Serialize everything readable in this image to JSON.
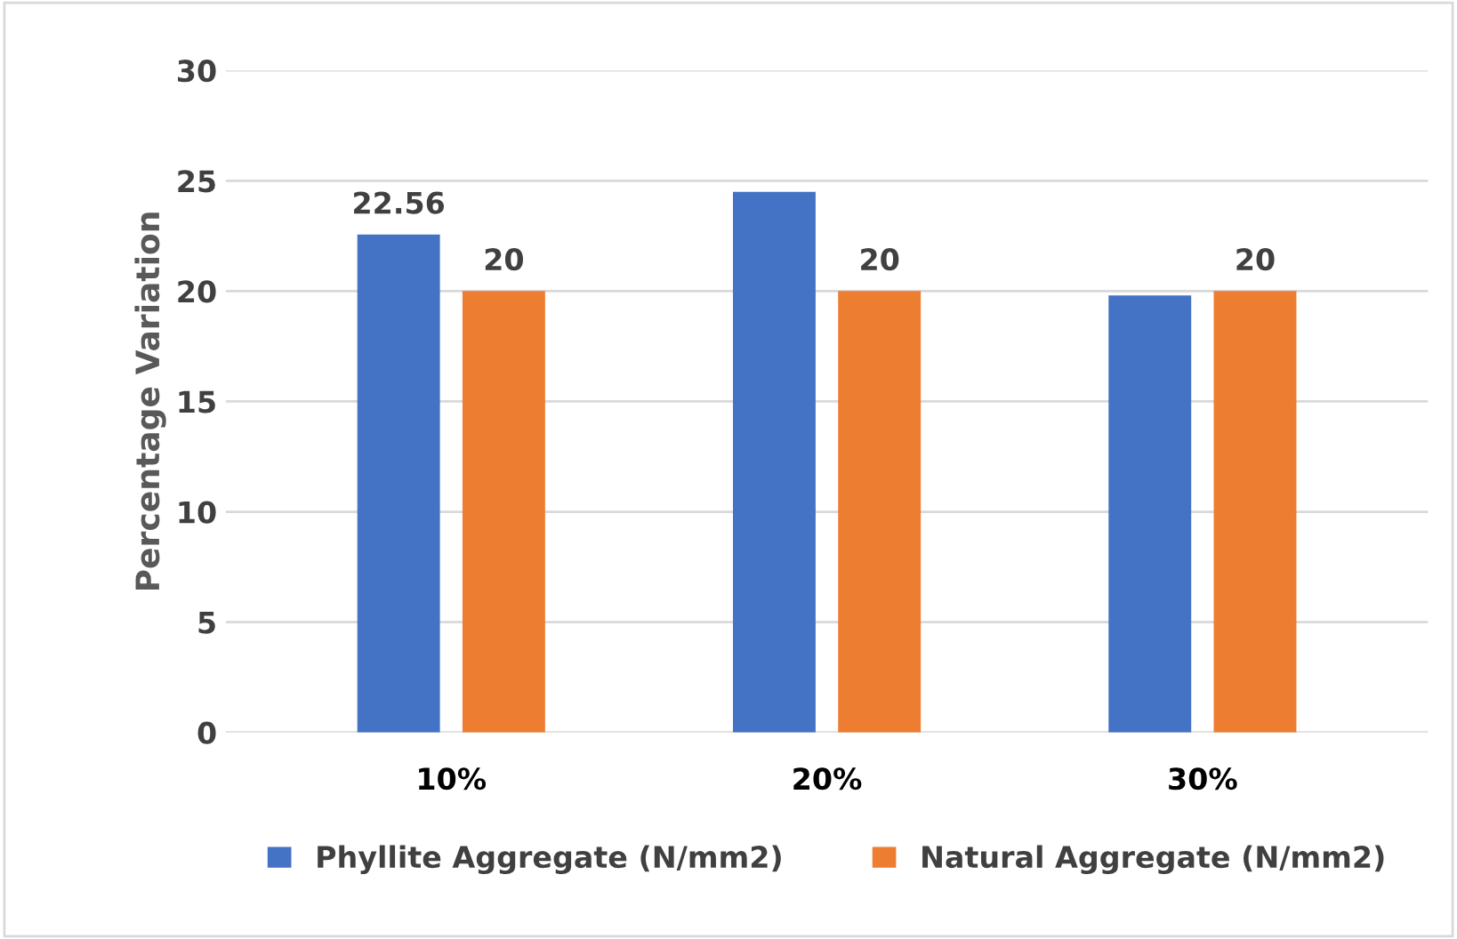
{
  "chart_data": {
    "type": "bar",
    "ylabel": "Percentage Variation",
    "categories": [
      "10%",
      "20%",
      "30%"
    ],
    "series": [
      {
        "name": "Phyllite Aggregate (N/mm2)",
        "color": "#4472c4",
        "values": [
          22.56,
          24.5,
          19.8
        ],
        "value_labels": [
          "22.56",
          null,
          null
        ]
      },
      {
        "name": "Natural Aggregate (N/mm2)",
        "color": "#ed7d31",
        "values": [
          20,
          20,
          20
        ],
        "value_labels": [
          "20",
          "20",
          "20"
        ]
      }
    ],
    "ylim": [
      0,
      30
    ],
    "yticks": [
      0,
      5,
      10,
      15,
      20,
      25,
      30
    ],
    "grid": "y",
    "legend": "bottom"
  }
}
